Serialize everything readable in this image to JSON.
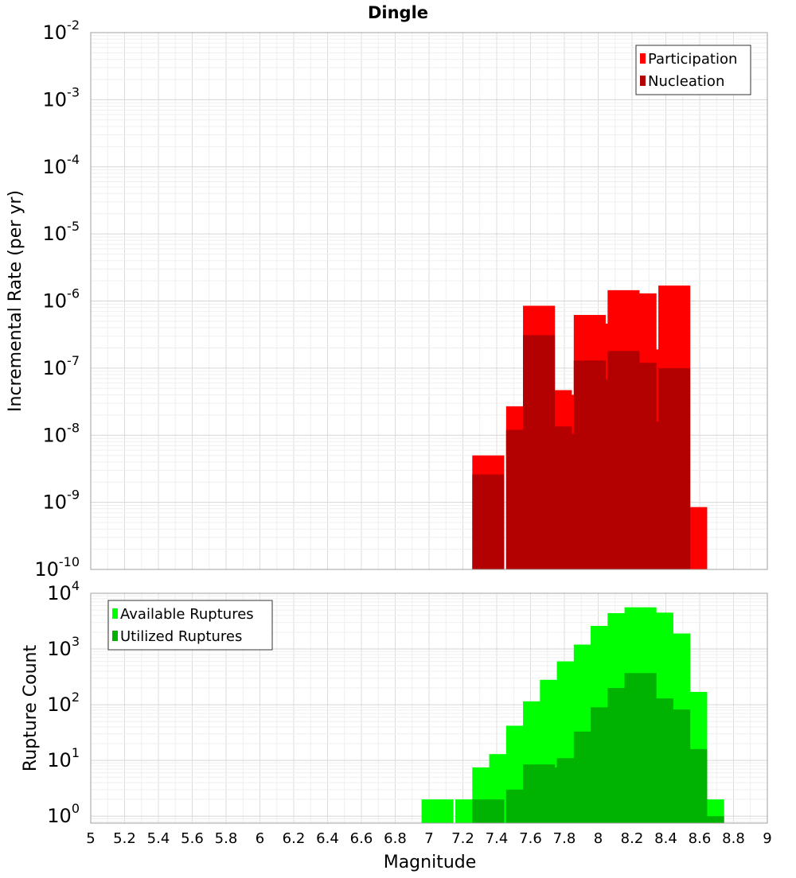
{
  "chart_data": [
    {
      "type": "bar",
      "title": "Dingle",
      "xlabel": "",
      "ylabel": "Incremental Rate (per yr)",
      "y_scale": "log",
      "ylim": [
        1e-10,
        0.01
      ],
      "xlim": [
        5,
        9
      ],
      "y_tick_exponents": [
        -2,
        -3,
        -4,
        -5,
        -6,
        -7,
        -8,
        -9,
        -10
      ],
      "legend_position": "top-right",
      "grid": true,
      "bar_mode": "overlay",
      "series": [
        {
          "name": "Participation",
          "color": "#ff0000",
          "points": [
            [
              7.35,
              5e-09
            ],
            [
              7.55,
              2.7e-08
            ],
            [
              7.65,
              8.5e-07
            ],
            [
              7.75,
              4.7e-08
            ],
            [
              7.85,
              4e-08
            ],
            [
              7.95,
              6.2e-07
            ],
            [
              8.05,
              4.6e-07
            ],
            [
              8.15,
              1.45e-06
            ],
            [
              8.25,
              1.3e-06
            ],
            [
              8.35,
              1.9e-07
            ],
            [
              8.45,
              1.7e-06
            ],
            [
              8.55,
              8.5e-10
            ]
          ]
        },
        {
          "name": "Nucleation",
          "color": "#b30000",
          "points": [
            [
              7.35,
              2.6e-09
            ],
            [
              7.55,
              1.2e-08
            ],
            [
              7.65,
              3.1e-07
            ],
            [
              7.75,
              1.35e-08
            ],
            [
              7.85,
              1.05e-08
            ],
            [
              7.95,
              1.3e-07
            ],
            [
              8.05,
              6.7e-08
            ],
            [
              8.15,
              1.8e-07
            ],
            [
              8.25,
              1.2e-07
            ],
            [
              8.35,
              1.6e-08
            ],
            [
              8.45,
              1e-07
            ]
          ]
        }
      ]
    },
    {
      "type": "bar",
      "title": "",
      "xlabel": "Magnitude",
      "ylabel": "Rupture Count",
      "y_scale": "log",
      "ylim": [
        0.75,
        10000
      ],
      "xlim": [
        5,
        9
      ],
      "y_tick_exponents": [
        4,
        3,
        2,
        1,
        0
      ],
      "x_ticks": [
        "5",
        "5.2",
        "5.4",
        "5.6",
        "5.8",
        "6",
        "6.2",
        "6.4",
        "6.6",
        "6.8",
        "7",
        "7.2",
        "7.4",
        "7.6",
        "7.8",
        "8",
        "8.2",
        "8.4",
        "8.6",
        "8.8",
        "9"
      ],
      "legend_position": "top-left",
      "grid": true,
      "bar_mode": "overlay",
      "series": [
        {
          "name": "Available Ruptures",
          "color": "#00ff00",
          "points": [
            [
              7.05,
              2
            ],
            [
              7.25,
              2
            ],
            [
              7.35,
              7.5
            ],
            [
              7.45,
              13
            ],
            [
              7.55,
              42
            ],
            [
              7.65,
              115
            ],
            [
              7.75,
              280
            ],
            [
              7.85,
              600
            ],
            [
              7.95,
              1200
            ],
            [
              8.05,
              2600
            ],
            [
              8.15,
              4400
            ],
            [
              8.25,
              5600
            ],
            [
              8.35,
              4500
            ],
            [
              8.45,
              1900
            ],
            [
              8.55,
              170
            ],
            [
              8.65,
              2
            ]
          ]
        },
        {
          "name": "Utilized Ruptures",
          "color": "#00b300",
          "points": [
            [
              7.35,
              2
            ],
            [
              7.55,
              3
            ],
            [
              7.65,
              8.5
            ],
            [
              7.75,
              7.5
            ],
            [
              7.85,
              11
            ],
            [
              7.95,
              33
            ],
            [
              8.05,
              90
            ],
            [
              8.15,
              200
            ],
            [
              8.25,
              370
            ],
            [
              8.35,
              130
            ],
            [
              8.45,
              82
            ],
            [
              8.55,
              16
            ],
            [
              8.65,
              1
            ]
          ]
        }
      ]
    }
  ]
}
